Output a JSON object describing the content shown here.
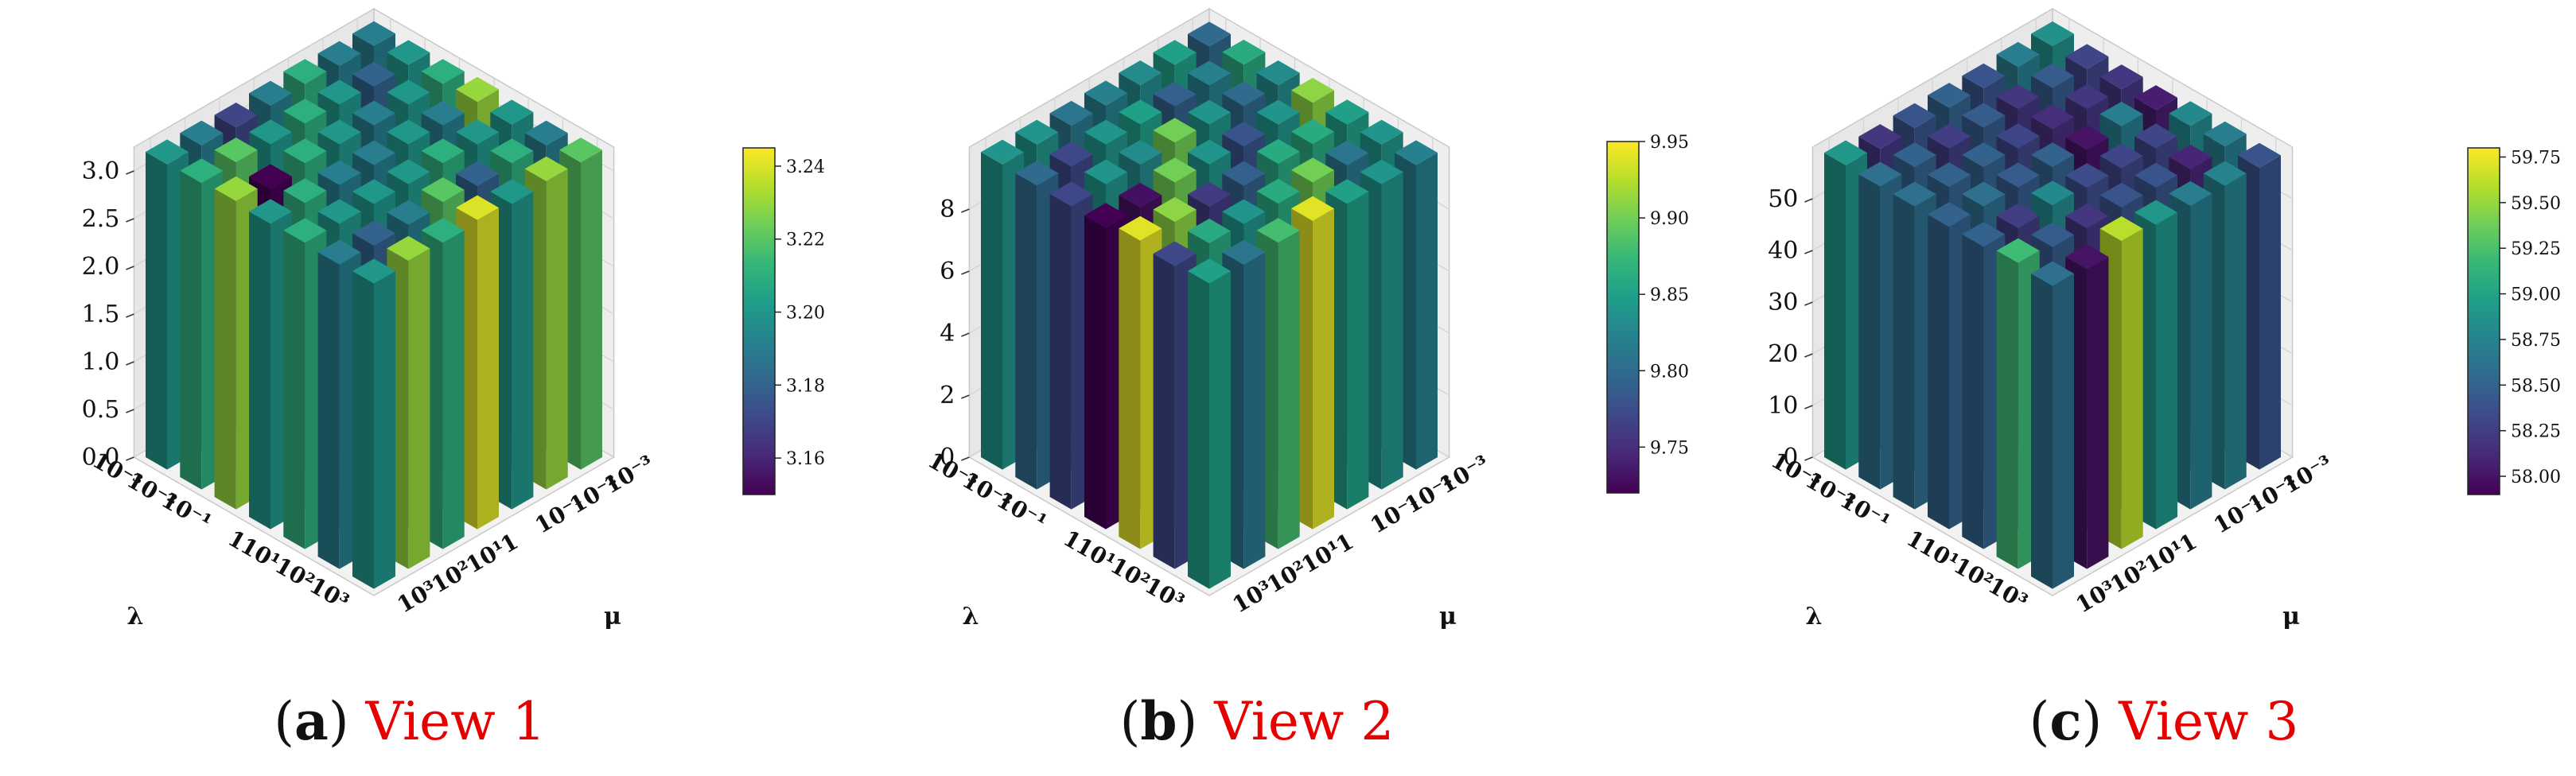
{
  "figure": {
    "captions": [
      {
        "letter": "a",
        "text": "View 1"
      },
      {
        "letter": "b",
        "text": "View 2"
      },
      {
        "letter": "c",
        "text": "View 3"
      }
    ]
  },
  "palette": [
    "#440154",
    "#482878",
    "#3e4989",
    "#31688e",
    "#26828e",
    "#1f9e89",
    "#35b779",
    "#6ece58",
    "#b5de2b",
    "#fde725"
  ],
  "chart_data": [
    {
      "type": "bar3d",
      "title": "",
      "xlabel": "λ",
      "ylabel": "μ",
      "x_ticks": [
        "10⁻³",
        "10⁻²",
        "10⁻¹",
        "1",
        "10¹",
        "10²",
        "10³"
      ],
      "y_ticks": [
        "10³",
        "10²",
        "10¹",
        "1",
        "10⁻¹",
        "10⁻²",
        "10⁻³"
      ],
      "z_ticks": [
        "0.0",
        "0.5",
        "1.0",
        "1.5",
        "2.0",
        "2.5",
        "3.0"
      ],
      "z_tick_values": [
        0,
        0.5,
        1.0,
        1.5,
        2.0,
        2.5,
        3.0
      ],
      "zlim": [
        0,
        3.25
      ],
      "colorbar": {
        "min": 3.15,
        "max": 3.245,
        "ticks": [
          "3.16",
          "3.18",
          "3.20",
          "3.22",
          "3.24"
        ],
        "tick_values": [
          3.16,
          3.18,
          3.2,
          3.22,
          3.24
        ]
      },
      "values": [
        [
          3.19,
          3.2,
          3.21,
          3.23,
          3.2,
          3.19,
          3.22
        ],
        [
          3.19,
          3.18,
          3.2,
          3.19,
          3.2,
          3.21,
          3.23
        ],
        [
          3.21,
          3.2,
          3.19,
          3.2,
          3.21,
          3.18,
          3.2
        ],
        [
          3.19,
          3.21,
          3.2,
          3.19,
          3.2,
          3.22,
          3.24
        ],
        [
          3.17,
          3.2,
          3.21,
          3.19,
          3.2,
          3.19,
          3.21
        ],
        [
          3.19,
          3.22,
          3.15,
          3.21,
          3.2,
          3.18,
          3.23
        ],
        [
          3.2,
          3.21,
          3.23,
          3.2,
          3.21,
          3.19,
          3.2
        ]
      ]
    },
    {
      "type": "bar3d",
      "title": "",
      "xlabel": "λ",
      "ylabel": "μ",
      "x_ticks": [
        "10⁻³",
        "10⁻²",
        "10⁻¹",
        "1",
        "10¹",
        "10²",
        "10³"
      ],
      "y_ticks": [
        "10³",
        "10²",
        "10¹",
        "1",
        "10⁻¹",
        "10⁻²",
        "10⁻³"
      ],
      "z_ticks": [
        "0",
        "2",
        "4",
        "6",
        "8"
      ],
      "z_tick_values": [
        0,
        2,
        4,
        6,
        8
      ],
      "zlim": [
        0,
        10
      ],
      "colorbar": {
        "min": 9.72,
        "max": 9.95,
        "ticks": [
          "9.75",
          "9.80",
          "9.85",
          "9.90",
          "9.95"
        ],
        "tick_values": [
          9.75,
          9.8,
          9.85,
          9.9,
          9.95
        ]
      },
      "values": [
        [
          9.8,
          9.86,
          9.83,
          9.91,
          9.85,
          9.84,
          9.82
        ],
        [
          9.85,
          9.82,
          9.8,
          9.84,
          9.86,
          9.81,
          9.84
        ],
        [
          9.83,
          9.79,
          9.84,
          9.78,
          9.86,
          9.9,
          9.85
        ],
        [
          9.82,
          9.85,
          9.9,
          9.84,
          9.79,
          9.86,
          9.94
        ],
        [
          9.81,
          9.84,
          9.83,
          9.9,
          9.76,
          9.84,
          9.88
        ],
        [
          9.84,
          9.77,
          9.84,
          9.73,
          9.91,
          9.86,
          9.81
        ],
        [
          9.84,
          9.8,
          9.77,
          9.72,
          9.94,
          9.77,
          9.85
        ]
      ]
    },
    {
      "type": "bar3d",
      "title": "",
      "xlabel": "λ",
      "ylabel": "μ",
      "x_ticks": [
        "10⁻³",
        "10⁻²",
        "10⁻¹",
        "1",
        "10¹",
        "10²",
        "10³"
      ],
      "y_ticks": [
        "10³",
        "10²",
        "10¹",
        "1",
        "10⁻¹",
        "10⁻²",
        "10⁻³"
      ],
      "z_ticks": [
        "0",
        "10",
        "20",
        "30",
        "40",
        "50"
      ],
      "z_tick_values": [
        0,
        10,
        20,
        30,
        40,
        50
      ],
      "zlim": [
        0,
        60
      ],
      "colorbar": {
        "min": 57.9,
        "max": 59.8,
        "ticks": [
          "58.00",
          "58.25",
          "58.50",
          "58.75",
          "59.00",
          "59.25",
          "59.50",
          "59.75"
        ],
        "tick_values": [
          58.0,
          58.25,
          58.5,
          58.75,
          59.0,
          59.25,
          59.5,
          59.75
        ]
      },
      "values": [
        [
          58.85,
          58.3,
          58.2,
          58.05,
          58.8,
          58.7,
          58.4
        ],
        [
          58.7,
          58.45,
          58.2,
          58.7,
          58.3,
          58.1,
          58.75
        ],
        [
          58.4,
          58.2,
          58.15,
          58.0,
          58.3,
          58.4,
          58.7
        ],
        [
          58.5,
          58.45,
          58.3,
          58.5,
          58.35,
          58.4,
          58.9
        ],
        [
          58.4,
          58.25,
          58.5,
          58.45,
          58.8,
          58.2,
          59.6
        ],
        [
          58.2,
          58.5,
          58.5,
          58.6,
          58.25,
          58.45,
          58.0
        ],
        [
          58.9,
          58.6,
          58.6,
          58.5,
          58.5,
          59.2,
          58.6
        ]
      ]
    }
  ]
}
